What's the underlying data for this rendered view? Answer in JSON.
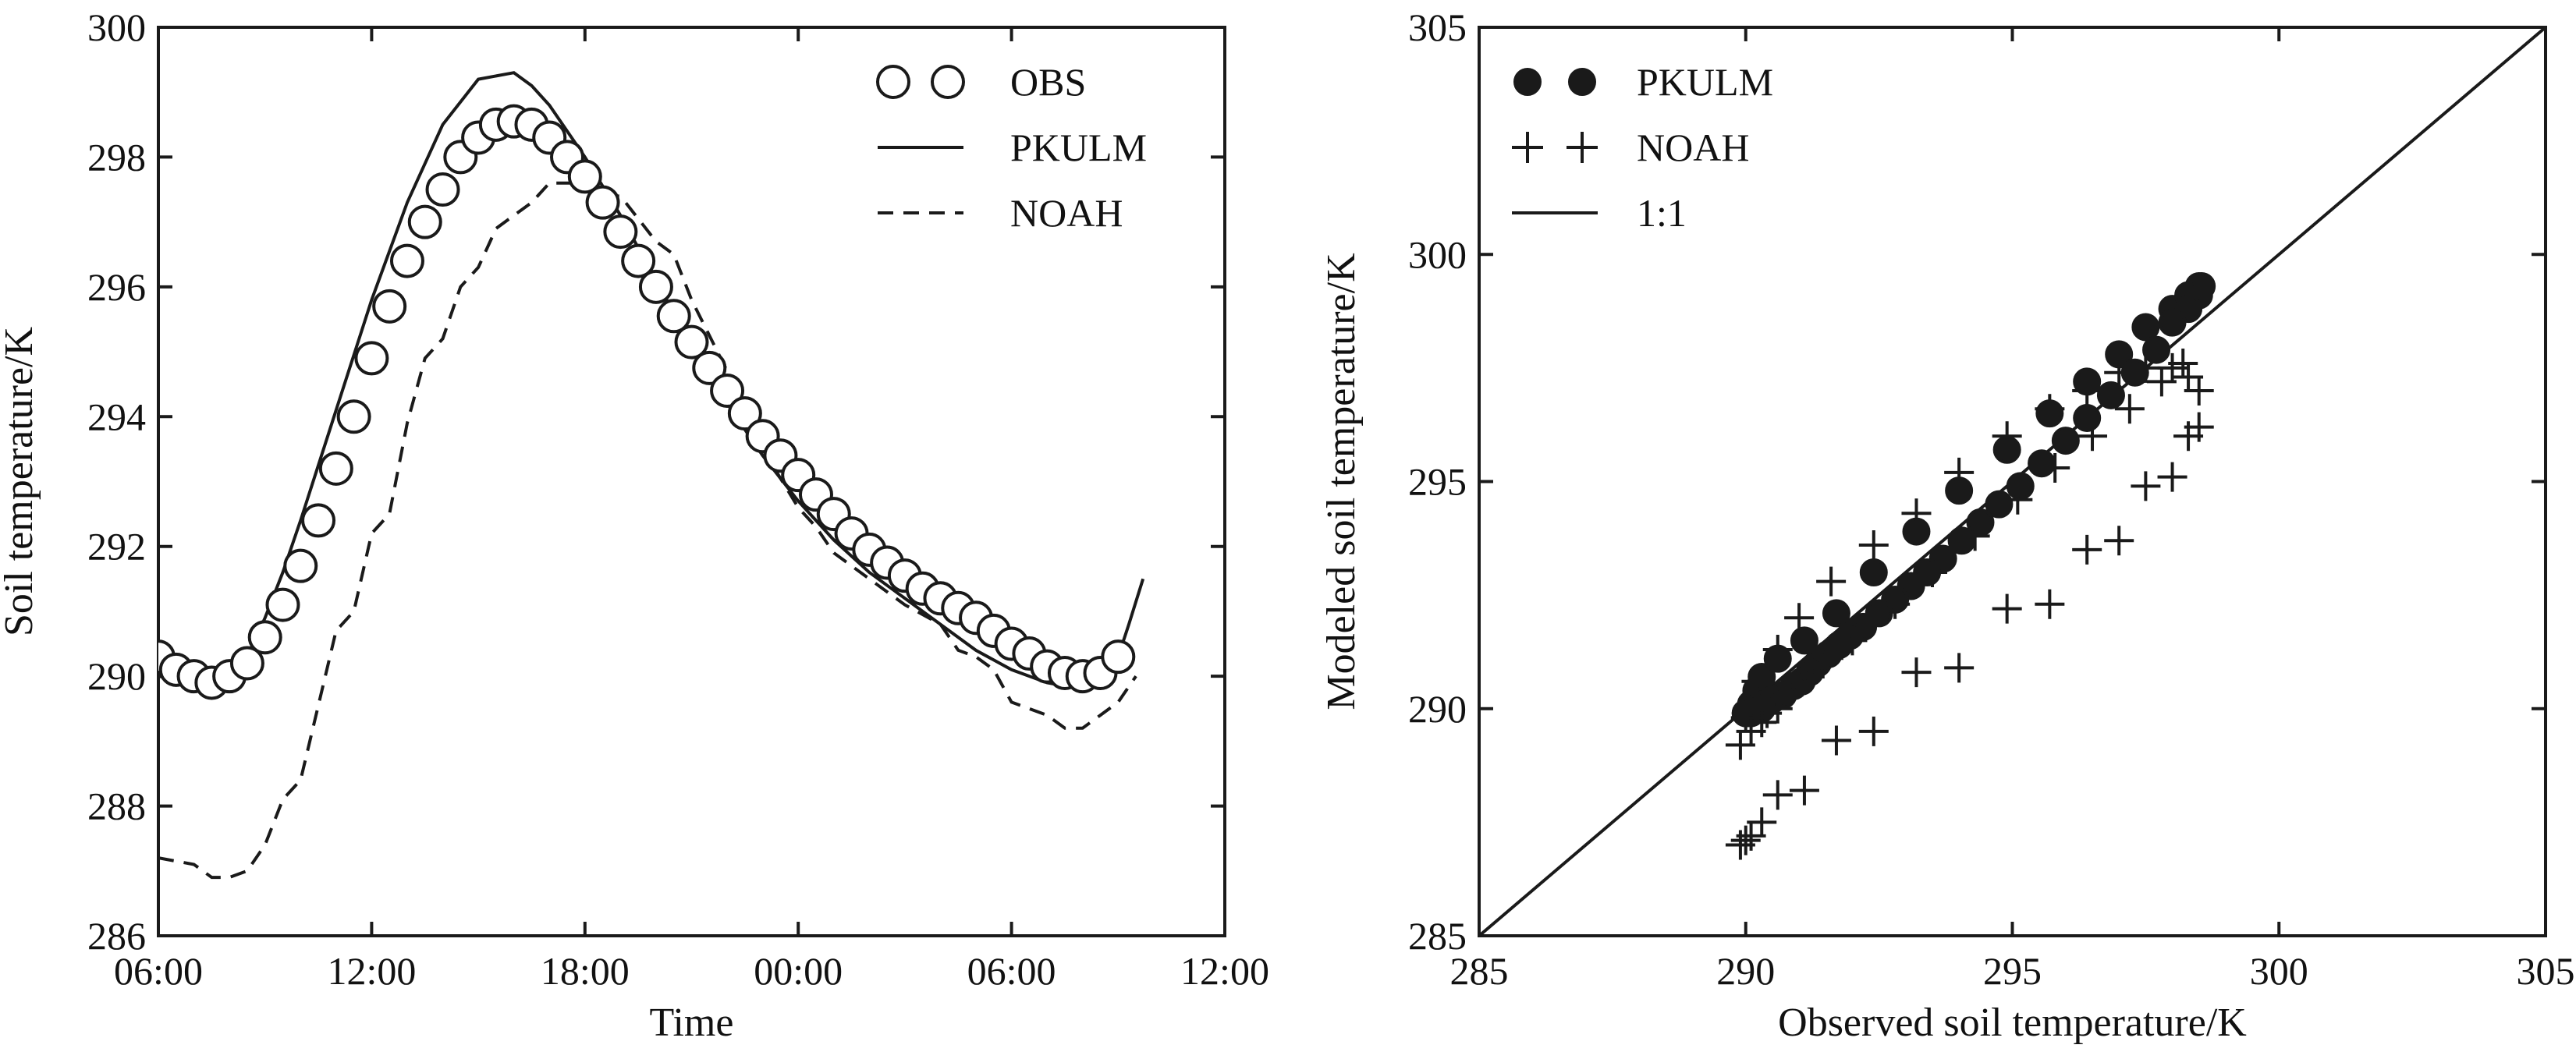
{
  "chart_data": [
    {
      "type": "line",
      "title": "",
      "xlabel": "Time",
      "ylabel": "Soil temperature/K",
      "x_unit": "hours since 06:00 of day 1",
      "xlim": [
        0,
        30
      ],
      "ylim": [
        286,
        300
      ],
      "x_ticks": [
        0,
        6,
        12,
        18,
        24,
        30
      ],
      "x_tick_labels": [
        "06:00",
        "12:00",
        "18:00",
        "00:00",
        "06:00",
        "12:00"
      ],
      "y_ticks": [
        286,
        288,
        290,
        292,
        294,
        296,
        298,
        300
      ],
      "grid": false,
      "legend_position": "top-right",
      "series": [
        {
          "name": "OBS",
          "style": "open-circles",
          "x": [
            0,
            0.5,
            1,
            1.5,
            2,
            2.5,
            3,
            3.5,
            4,
            4.5,
            5,
            5.5,
            6,
            6.5,
            7,
            7.5,
            8,
            8.5,
            9,
            9.5,
            10,
            10.5,
            11,
            11.5,
            12,
            12.5,
            13,
            13.5,
            14,
            14.5,
            15,
            15.5,
            16,
            16.5,
            17,
            17.5,
            18,
            18.5,
            19,
            19.5,
            20,
            20.5,
            21,
            21.5,
            22,
            22.5,
            23,
            23.5,
            24,
            24.5,
            25,
            25.5,
            26,
            26.5,
            27
          ],
          "values": [
            290.3,
            290.1,
            290.0,
            289.9,
            290.0,
            290.2,
            290.6,
            291.1,
            291.7,
            292.4,
            293.2,
            294.0,
            294.9,
            295.7,
            296.4,
            297.0,
            297.5,
            298.0,
            298.3,
            298.5,
            298.55,
            298.5,
            298.3,
            298.0,
            297.7,
            297.3,
            296.85,
            296.4,
            296.0,
            295.55,
            295.15,
            294.75,
            294.4,
            294.05,
            293.7,
            293.4,
            293.1,
            292.8,
            292.5,
            292.2,
            291.95,
            291.75,
            291.55,
            291.35,
            291.2,
            291.05,
            290.9,
            290.7,
            290.5,
            290.35,
            290.15,
            290.05,
            290.0,
            290.05,
            290.3
          ]
        },
        {
          "name": "PKULM",
          "style": "solid",
          "x": [
            0,
            1,
            1.5,
            2,
            2.5,
            3,
            3.5,
            4,
            5,
            6,
            7,
            8,
            9,
            10,
            10.5,
            11,
            11.5,
            12,
            13,
            14,
            15,
            16,
            17,
            18,
            19,
            20,
            21,
            22,
            23,
            24,
            25,
            26,
            26.5,
            27,
            27.3,
            27.7
          ],
          "values": [
            290.0,
            289.9,
            289.9,
            290.0,
            290.3,
            290.9,
            291.6,
            292.4,
            294.1,
            295.8,
            297.3,
            298.5,
            299.2,
            299.3,
            299.1,
            298.8,
            298.4,
            298.0,
            297.1,
            296.1,
            295.1,
            294.2,
            293.4,
            292.7,
            292.1,
            291.6,
            291.2,
            290.8,
            290.4,
            290.1,
            289.9,
            289.8,
            289.9,
            290.3,
            290.8,
            291.5
          ]
        },
        {
          "name": "NOAH",
          "style": "dashed",
          "x": [
            0,
            1,
            1.5,
            2,
            2.5,
            3,
            3.5,
            4,
            5,
            5.5,
            6,
            6.5,
            7,
            7.5,
            8,
            8.5,
            9,
            9.5,
            10,
            10.5,
            11,
            11.5,
            12,
            12.5,
            13,
            14,
            14.5,
            15,
            16,
            16.5,
            17,
            18,
            18.5,
            19,
            20,
            21,
            22,
            22.5,
            23,
            23.5,
            24,
            24.5,
            25,
            25.5,
            26,
            26.5,
            27,
            27.5
          ],
          "values": [
            287.2,
            287.1,
            286.9,
            286.9,
            287.0,
            287.4,
            288.1,
            288.4,
            290.7,
            291.0,
            292.2,
            292.5,
            293.9,
            294.9,
            295.2,
            296.0,
            296.3,
            296.9,
            297.1,
            297.3,
            297.6,
            297.6,
            297.6,
            297.4,
            297.4,
            296.7,
            296.5,
            295.8,
            294.7,
            294.3,
            293.5,
            292.6,
            292.3,
            291.9,
            291.5,
            291.1,
            290.8,
            290.4,
            290.3,
            290.1,
            289.6,
            289.5,
            289.4,
            289.2,
            289.2,
            289.4,
            289.6,
            290.0
          ]
        }
      ],
      "legend": [
        {
          "label": "OBS",
          "series": "OBS"
        },
        {
          "label": "PKULM",
          "series": "PKULM"
        },
        {
          "label": "NOAH",
          "series": "NOAH"
        }
      ]
    },
    {
      "type": "scatter",
      "title": "",
      "xlabel": "Observed soil temperature/K",
      "ylabel": "Modeled soil temperature/K",
      "xlim": [
        285,
        305
      ],
      "ylim": [
        285,
        305
      ],
      "x_ticks": [
        285,
        290,
        295,
        300,
        305
      ],
      "y_ticks": [
        285,
        290,
        295,
        300,
        305
      ],
      "grid": false,
      "legend_position": "top-left",
      "series": [
        {
          "name": "PKULM",
          "style": "filled-circles",
          "x": [
            290.0,
            290.1,
            290.2,
            290.3,
            290.6,
            291.1,
            291.7,
            292.4,
            293.2,
            294.0,
            294.9,
            295.7,
            296.4,
            297.0,
            297.5,
            298.0,
            298.3,
            298.5,
            298.55,
            298.5,
            298.3,
            298.0,
            297.7,
            297.3,
            296.85,
            296.4,
            296.0,
            295.55,
            295.15,
            294.75,
            294.4,
            294.05,
            293.7,
            293.4,
            293.1,
            292.8,
            292.5,
            292.2,
            291.95,
            291.75,
            291.55,
            291.35,
            291.2,
            291.05,
            290.9,
            290.7,
            290.5,
            290.35,
            290.15,
            290.05,
            290.0,
            290.1,
            290.3
          ],
          "values": [
            289.9,
            290.1,
            290.4,
            290.7,
            291.1,
            291.5,
            292.1,
            293.0,
            293.9,
            294.8,
            295.7,
            296.5,
            297.2,
            297.8,
            298.4,
            298.8,
            299.1,
            299.3,
            299.3,
            299.1,
            298.8,
            298.5,
            297.9,
            297.4,
            296.9,
            296.4,
            295.9,
            295.4,
            294.9,
            294.5,
            294.1,
            293.7,
            293.3,
            293.0,
            292.7,
            292.4,
            292.1,
            291.8,
            291.6,
            291.4,
            291.2,
            291.0,
            290.8,
            290.6,
            290.5,
            290.3,
            290.2,
            290.1,
            290.0,
            289.95,
            289.9,
            289.9,
            290.0
          ]
        },
        {
          "name": "NOAH",
          "style": "plus",
          "x": [
            289.9,
            290.0,
            290.1,
            290.3,
            290.6,
            291.1,
            291.7,
            292.4,
            293.2,
            294.0,
            294.9,
            295.7,
            296.4,
            297.0,
            297.5,
            298.0,
            298.3,
            298.5,
            298.5,
            298.3,
            298.0,
            297.5,
            297.0,
            296.4,
            295.7,
            294.9,
            294.0,
            293.2,
            292.4,
            291.6,
            291.0,
            290.6,
            290.2,
            290.0,
            289.9,
            290.1,
            290.3,
            290.6,
            291.2,
            292.0,
            292.8,
            293.5,
            294.3,
            295.1,
            295.8,
            296.5,
            297.2,
            297.8,
            298.2,
            290.4,
            290.8,
            291.3,
            291.8
          ],
          "values": [
            287.0,
            287.1,
            287.2,
            287.5,
            288.1,
            288.2,
            289.3,
            289.5,
            290.8,
            290.9,
            292.2,
            292.3,
            293.5,
            293.7,
            294.9,
            295.1,
            296.0,
            296.2,
            297.0,
            297.3,
            297.5,
            297.5,
            297.4,
            297.0,
            296.6,
            296.0,
            295.2,
            294.3,
            293.6,
            292.8,
            292.0,
            291.3,
            290.6,
            289.8,
            289.2,
            289.5,
            289.7,
            290.0,
            290.7,
            291.5,
            292.3,
            293.0,
            293.8,
            294.6,
            295.3,
            296.0,
            296.6,
            297.2,
            297.6,
            289.9,
            290.3,
            290.9,
            291.4
          ]
        },
        {
          "name": "1:1",
          "style": "solid",
          "x": [
            285,
            305
          ],
          "values": [
            285,
            305
          ]
        }
      ],
      "legend": [
        {
          "label": "PKULM",
          "series": "PKULM"
        },
        {
          "label": "NOAH",
          "series": "NOAH"
        },
        {
          "label": "1:1",
          "series": "1:1"
        }
      ]
    }
  ]
}
